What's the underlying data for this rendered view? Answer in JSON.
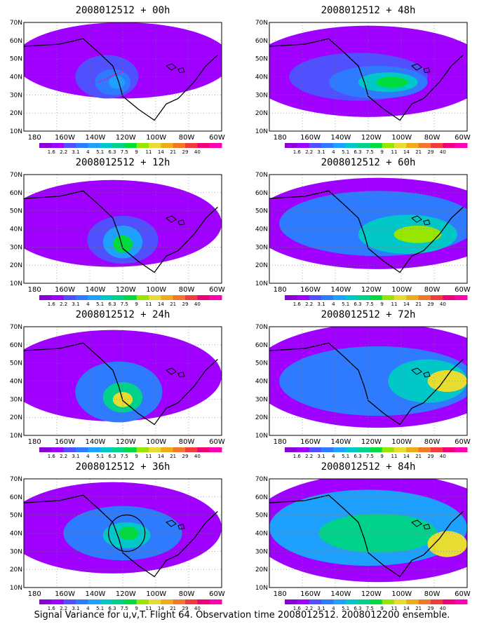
{
  "colors": {
    "scale": [
      "#8a00d9",
      "#a000ff",
      "#5050ff",
      "#2f7bff",
      "#1ea0ff",
      "#00c8c8",
      "#00d28c",
      "#00dc3c",
      "#96e600",
      "#e6dc32",
      "#f0aa1e",
      "#f07828",
      "#f03c3c",
      "#f00078",
      "#ff00b4"
    ],
    "land_outline": "#000000",
    "ocean_missing": "#ffffff"
  },
  "legend": {
    "labels": [
      "1.6",
      "2.2",
      "3.1",
      "4",
      "5.1",
      "6.3",
      "7.5",
      "9",
      "11",
      "14",
      "21",
      "29",
      "40"
    ]
  },
  "axes": {
    "lat_labels": [
      "70N",
      "60N",
      "50N",
      "40N",
      "30N",
      "20N",
      "10N"
    ],
    "lon_labels": [
      "180",
      "160W",
      "140W",
      "120W",
      "100W",
      "80W",
      "60W"
    ]
  },
  "panels": [
    {
      "title": "2008012512 + 00h"
    },
    {
      "title": "2008012512 + 48h"
    },
    {
      "title": "2008012512 + 12h"
    },
    {
      "title": "2008012512 + 60h"
    },
    {
      "title": "2008012512 + 24h"
    },
    {
      "title": "2008012512 + 72h"
    },
    {
      "title": "2008012512 + 36h"
    },
    {
      "title": "2008012512 + 84h"
    }
  ],
  "footer": "Signal Variance for u,v,T. Flight 64. Observation time 2008012512. 2008012200 ensemble.",
  "chart_data": {
    "type": "heatmap",
    "title": "Signal Variance for u,v,T",
    "xlabel": "",
    "ylabel": "",
    "x_range": [
      "170E",
      "60W"
    ],
    "y_range": [
      "10N",
      "70N"
    ],
    "color_levels": [
      1.6,
      2.2,
      3.1,
      4,
      5.1,
      6.3,
      7.5,
      9,
      11,
      14,
      21,
      29,
      40
    ],
    "lead_times_h": [
      0,
      12,
      24,
      36,
      48,
      60,
      72,
      84
    ],
    "peak_regions": [
      {
        "lead": "00h",
        "center": "38N,130W",
        "max_level": 9
      },
      {
        "lead": "12h",
        "center": "35N,125W",
        "max_level": 11
      },
      {
        "lead": "24h",
        "center": "33N,120W",
        "max_level": 14
      },
      {
        "lead": "36h",
        "center": "37N,115W",
        "max_level": 11
      },
      {
        "lead": "48h",
        "center": "40N,95W",
        "max_level": 11
      },
      {
        "lead": "60h",
        "center": "40N,80W",
        "max_level": 14
      },
      {
        "lead": "72h",
        "center": "38N,70W",
        "max_level": 14
      },
      {
        "lead": "84h",
        "center": "40N,70W",
        "max_level": 14
      }
    ]
  }
}
